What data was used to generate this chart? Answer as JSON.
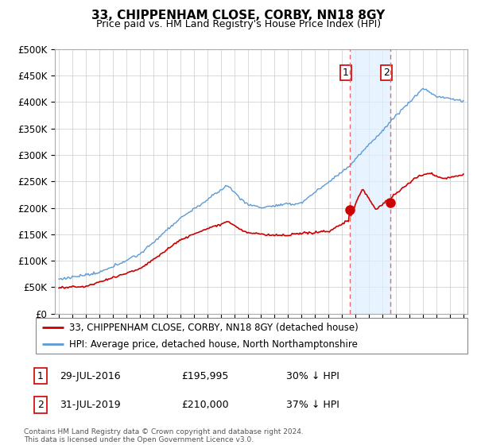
{
  "title": "33, CHIPPENHAM CLOSE, CORBY, NN18 8GY",
  "subtitle": "Price paid vs. HM Land Registry's House Price Index (HPI)",
  "ylabel_ticks": [
    "£0",
    "£50K",
    "£100K",
    "£150K",
    "£200K",
    "£250K",
    "£300K",
    "£350K",
    "£400K",
    "£450K",
    "£500K"
  ],
  "ytick_values": [
    0,
    50000,
    100000,
    150000,
    200000,
    250000,
    300000,
    350000,
    400000,
    450000,
    500000
  ],
  "ylim": [
    0,
    500000
  ],
  "hpi_color": "#5b9bd5",
  "hpi_fill_color": "#ddeeff",
  "price_color": "#cc0000",
  "marker_color": "#cc0000",
  "vline_color": "#ee6666",
  "sale1_year": 2016.583,
  "sale1_value": 195995,
  "sale1_label": "1",
  "sale1_date_str": "29-JUL-2016",
  "sale1_price_str": "£195,995",
  "sale1_pct_str": "30% ↓ HPI",
  "sale2_year": 2019.583,
  "sale2_value": 210000,
  "sale2_label": "2",
  "sale2_date_str": "31-JUL-2019",
  "sale2_price_str": "£210,000",
  "sale2_pct_str": "37% ↓ HPI",
  "legend_line1": "33, CHIPPENHAM CLOSE, CORBY, NN18 8GY (detached house)",
  "legend_line2": "HPI: Average price, detached house, North Northamptonshire",
  "footer1": "Contains HM Land Registry data © Crown copyright and database right 2024.",
  "footer2": "This data is licensed under the Open Government Licence v3.0.",
  "background_color": "#ffffff",
  "plot_bg_color": "#ffffff",
  "grid_color": "#cccccc"
}
